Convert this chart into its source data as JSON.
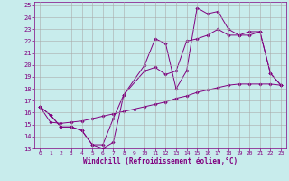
{
  "xlabel": "Windchill (Refroidissement éolien,°C)",
  "background_color": "#c8ecec",
  "line_color": "#800080",
  "grid_color": "#aaaaaa",
  "xlim": [
    -0.5,
    23.5
  ],
  "ylim": [
    13,
    25.3
  ],
  "xticks": [
    0,
    1,
    2,
    3,
    4,
    5,
    6,
    7,
    8,
    9,
    10,
    11,
    12,
    13,
    14,
    15,
    16,
    17,
    18,
    19,
    20,
    21,
    22,
    23
  ],
  "yticks": [
    13,
    14,
    15,
    16,
    17,
    18,
    19,
    20,
    21,
    22,
    23,
    24,
    25
  ],
  "line1_x": [
    0,
    1,
    2,
    3,
    4,
    5,
    6,
    7,
    8,
    10,
    11,
    12,
    13,
    14,
    15,
    16,
    17,
    18,
    19,
    20,
    21,
    22,
    23
  ],
  "line1_y": [
    16.5,
    15.8,
    14.8,
    14.8,
    14.5,
    13.3,
    13.0,
    13.5,
    17.5,
    20.0,
    22.2,
    21.8,
    18.0,
    19.5,
    24.8,
    24.3,
    24.5,
    23.0,
    22.5,
    22.8,
    22.8,
    19.3,
    18.3
  ],
  "line2_x": [
    0,
    1,
    2,
    3,
    4,
    5,
    6,
    7,
    8,
    9,
    10,
    11,
    12,
    13,
    14,
    15,
    16,
    17,
    18,
    19,
    20,
    21,
    22,
    23
  ],
  "line2_y": [
    16.5,
    15.2,
    15.1,
    15.2,
    15.3,
    15.5,
    15.7,
    15.9,
    16.1,
    16.3,
    16.5,
    16.7,
    16.9,
    17.2,
    17.4,
    17.7,
    17.9,
    18.1,
    18.3,
    18.4,
    18.4,
    18.4,
    18.4,
    18.3
  ],
  "line3_x": [
    0,
    1,
    2,
    3,
    4,
    5,
    6,
    7,
    8,
    10,
    11,
    12,
    13,
    14,
    15,
    16,
    17,
    18,
    19,
    20,
    21,
    22,
    23
  ],
  "line3_y": [
    16.5,
    15.8,
    14.8,
    14.8,
    14.5,
    13.3,
    13.3,
    15.5,
    17.5,
    19.5,
    19.8,
    19.2,
    19.5,
    22.0,
    22.2,
    22.5,
    23.0,
    22.5,
    22.5,
    22.5,
    22.8,
    19.3,
    18.3
  ]
}
